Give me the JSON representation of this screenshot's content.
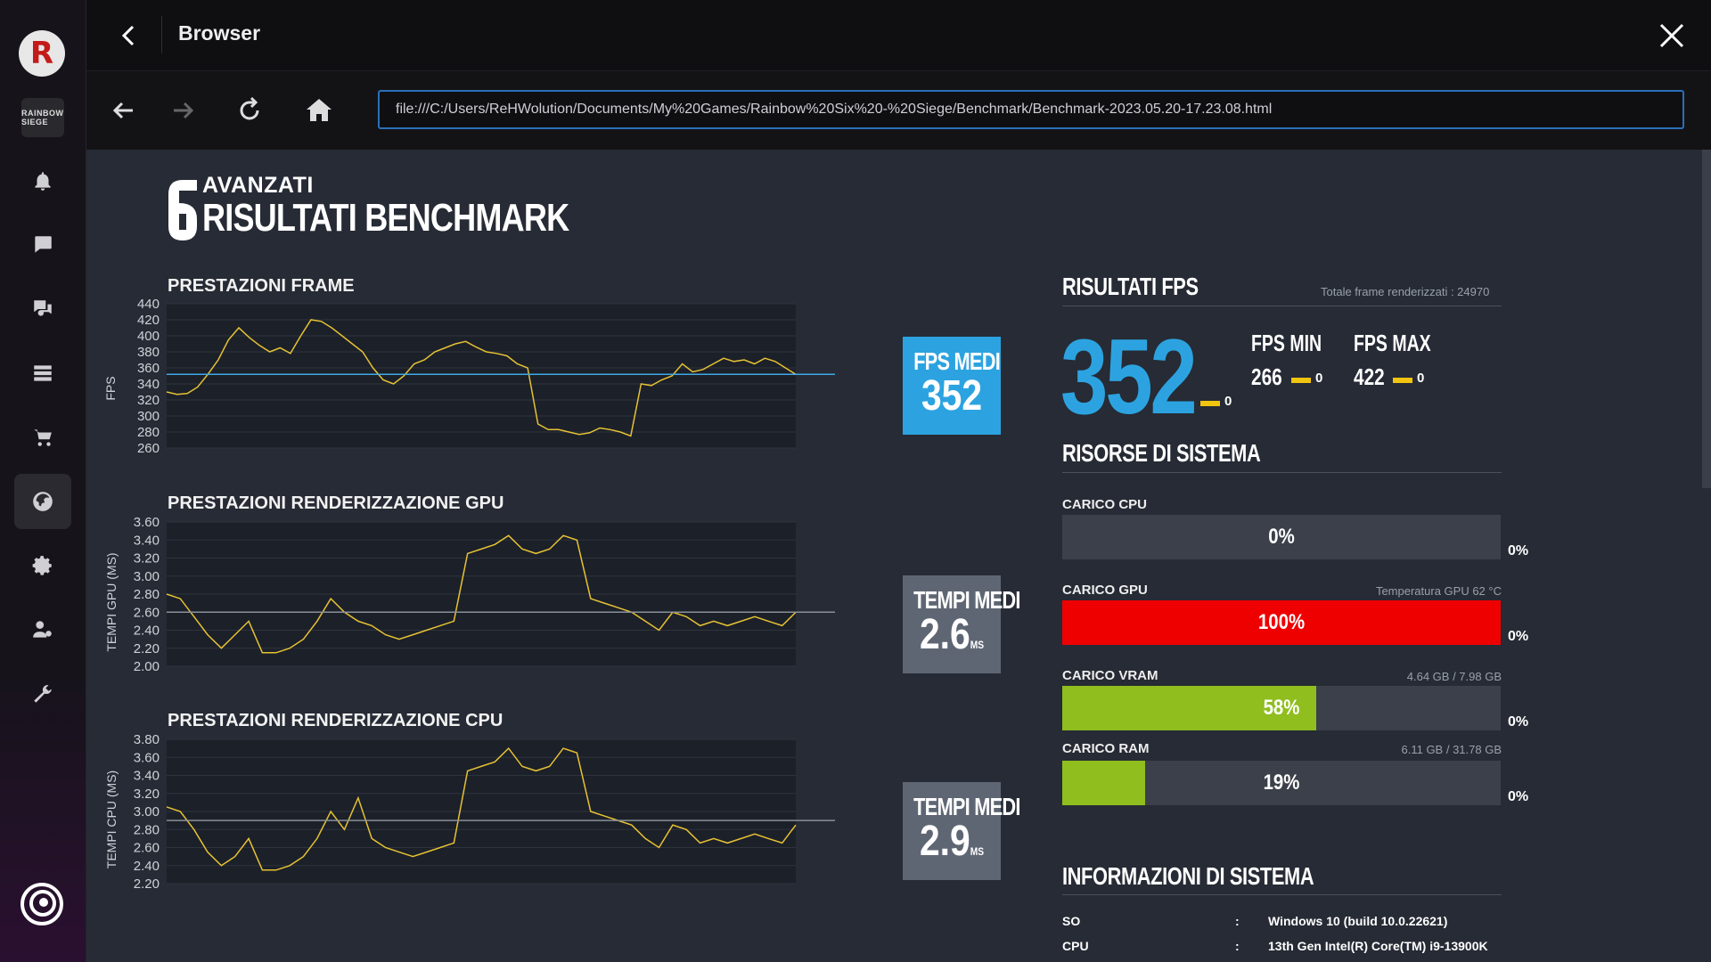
{
  "window": {
    "title": "Browser"
  },
  "browser": {
    "url": "file:///C:/Users/ReHWolution/Documents/My%20Games/Rainbow%20Six%20-%20Siege/Benchmark/Benchmark-2023.05.20-17.23.08.html"
  },
  "sidebar": {
    "game_tile": "RAINBOW SIEGE",
    "items": [
      "bell-icon",
      "chat-icon",
      "friends-icon",
      "library-icon",
      "cart-icon",
      "globe-icon",
      "gear-icon",
      "user-settings-icon",
      "tools-icon"
    ]
  },
  "header": {
    "small": "AVANZATI",
    "big": "RISULTATI BENCHMARK"
  },
  "frame_chart": {
    "title": "PRESTAZIONI FRAME",
    "ylabel": "FPS",
    "box_title": "FPS MEDI",
    "box_value": "352",
    "box_unit": "",
    "chart_data": {
      "type": "line",
      "ylabel": "FPS",
      "ylim": [
        260,
        440
      ],
      "yticks": [
        "440",
        "420",
        "400",
        "380",
        "360",
        "340",
        "320",
        "300",
        "280",
        "260"
      ],
      "avg_line": 352,
      "series": [
        {
          "values": [
            330,
            327,
            328,
            336,
            352,
            370,
            395,
            410,
            398,
            388,
            380,
            385,
            378,
            400,
            420,
            418,
            410,
            400,
            390,
            380,
            360,
            345,
            340,
            350,
            365,
            370,
            380,
            385,
            390,
            393,
            386,
            380,
            378,
            375,
            365,
            360,
            290,
            283,
            283,
            280,
            277,
            279,
            285,
            283,
            280,
            275,
            340,
            338,
            345,
            350,
            365,
            355,
            358,
            365,
            372,
            368,
            370,
            365,
            372,
            368,
            360,
            352
          ]
        }
      ]
    }
  },
  "gpu_chart": {
    "title": "PRESTAZIONI RENDERIZZAZIONE GPU",
    "ylabel": "TEMPI GPU (MS)",
    "box_title": "TEMPI MEDI",
    "box_value": "2.6",
    "box_unit": "MS",
    "chart_data": {
      "type": "line",
      "ylabel": "TEMPI GPU (MS)",
      "ylim": [
        2.0,
        3.6
      ],
      "yticks": [
        "3.60",
        "3.40",
        "3.20",
        "3.00",
        "2.80",
        "2.60",
        "2.40",
        "2.20",
        "2.00"
      ],
      "avg_line": 2.6,
      "series": [
        {
          "values": [
            2.8,
            2.75,
            2.55,
            2.35,
            2.2,
            2.35,
            2.5,
            2.15,
            2.15,
            2.2,
            2.3,
            2.5,
            2.75,
            2.6,
            2.5,
            2.45,
            2.35,
            2.3,
            2.35,
            2.4,
            2.45,
            2.5,
            3.25,
            3.3,
            3.35,
            3.45,
            3.3,
            3.25,
            3.3,
            3.45,
            3.4,
            2.75,
            2.7,
            2.65,
            2.6,
            2.5,
            2.4,
            2.6,
            2.55,
            2.45,
            2.5,
            2.45,
            2.5,
            2.55,
            2.5,
            2.45,
            2.6
          ]
        }
      ]
    }
  },
  "cpu_chart": {
    "title": "PRESTAZIONI RENDERIZZAZIONE CPU",
    "ylabel": "TEMPI CPU (MS)",
    "box_title": "TEMPI MEDI",
    "box_value": "2.9",
    "box_unit": "MS",
    "chart_data": {
      "type": "line",
      "ylabel": "TEMPI CPU (MS)",
      "ylim": [
        2.2,
        3.8
      ],
      "yticks": [
        "3.80",
        "3.60",
        "3.40",
        "3.20",
        "3.00",
        "2.80",
        "2.60",
        "2.40",
        "2.20"
      ],
      "avg_line": 2.9,
      "series": [
        {
          "values": [
            3.05,
            3.0,
            2.8,
            2.55,
            2.4,
            2.5,
            2.7,
            2.35,
            2.35,
            2.4,
            2.5,
            2.7,
            3.0,
            2.8,
            3.15,
            2.7,
            2.6,
            2.55,
            2.5,
            2.55,
            2.6,
            2.65,
            3.45,
            3.5,
            3.55,
            3.7,
            3.5,
            3.45,
            3.5,
            3.7,
            3.65,
            3.0,
            2.95,
            2.9,
            2.85,
            2.7,
            2.6,
            2.85,
            2.8,
            2.65,
            2.7,
            2.65,
            2.7,
            2.75,
            2.7,
            2.65,
            2.85
          ]
        }
      ]
    }
  },
  "fps_results": {
    "title": "RISULTATI FPS",
    "total_frames": "Totale frame renderizzati : 24970",
    "avg": "352",
    "avg_zero": "0",
    "min_label": "FPS MIN",
    "min_value": "266",
    "min_zero": "0",
    "max_label": "FPS MAX",
    "max_value": "422",
    "max_zero": "0",
    "accent": "#2ca3e0"
  },
  "resources": {
    "title": "RISORSE DI SISTEMA",
    "cpu": {
      "label": "CARICO CPU",
      "pct_text": "0%",
      "fill": 0,
      "zero": "0%",
      "color": "#3b404a",
      "info": ""
    },
    "gpu": {
      "label": "CARICO GPU",
      "pct_text": "100%",
      "fill": 1.0,
      "zero": "0%",
      "color": "#ee0000",
      "info": "Temperatura GPU 62 °C"
    },
    "vram": {
      "label": "CARICO VRAM",
      "pct_text": "58%",
      "fill": 0.58,
      "zero": "0%",
      "color": "#8fbe1e",
      "info": "4.64 GB / 7.98 GB"
    },
    "ram": {
      "label": "CARICO RAM",
      "pct_text": "19%",
      "fill": 0.19,
      "zero": "0%",
      "color": "#8fbe1e",
      "info": "6.11 GB / 31.78 GB"
    }
  },
  "sysinfo": {
    "title": "INFORMAZIONI DI SISTEMA",
    "rows": [
      {
        "key": "SO",
        "sep": ":",
        "value": "Windows 10 (build 10.0.22621)"
      },
      {
        "key": "CPU",
        "sep": ":",
        "value": "13th Gen Intel(R) Core(TM) i9-13900K"
      }
    ]
  }
}
